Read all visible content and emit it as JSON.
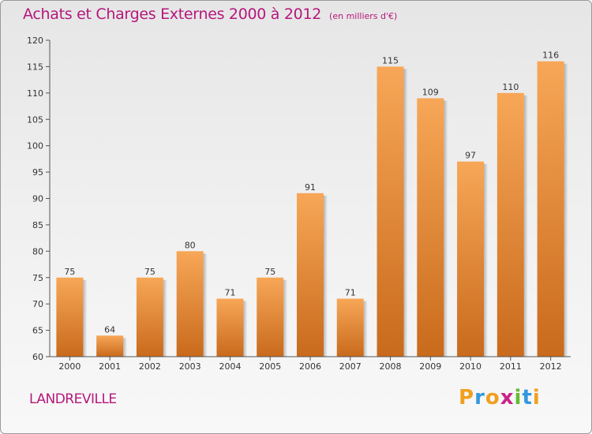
{
  "header": {
    "title": "Achats et Charges Externes 2000 à 2012",
    "unit": "(en milliers d'€)"
  },
  "footer": {
    "place": "LANDREVILLE",
    "brand_letters": [
      "P",
      "r",
      "o",
      "x",
      "i",
      "t",
      "i"
    ],
    "brand_colors": [
      "#f0a020",
      "#3399dd",
      "#f0a020",
      "#cc2288",
      "#66bb33",
      "#3399dd",
      "#f0a020"
    ]
  },
  "colors": {
    "title": "#b5177c",
    "bar_light": "#f7a757",
    "bar_dark": "#c96a1c"
  },
  "chart_data": {
    "type": "bar",
    "title": "Achats et Charges Externes 2000 à 2012",
    "categories": [
      "2000",
      "2001",
      "2002",
      "2003",
      "2004",
      "2005",
      "2006",
      "2007",
      "2008",
      "2009",
      "2010",
      "2011",
      "2012"
    ],
    "values": [
      75,
      64,
      75,
      80,
      71,
      75,
      91,
      71,
      115,
      109,
      97,
      110,
      116
    ],
    "ylim": [
      60,
      120
    ],
    "yticks": [
      60,
      65,
      70,
      75,
      80,
      85,
      90,
      95,
      100,
      105,
      110,
      115,
      120
    ],
    "grid": false,
    "legend": "none"
  }
}
